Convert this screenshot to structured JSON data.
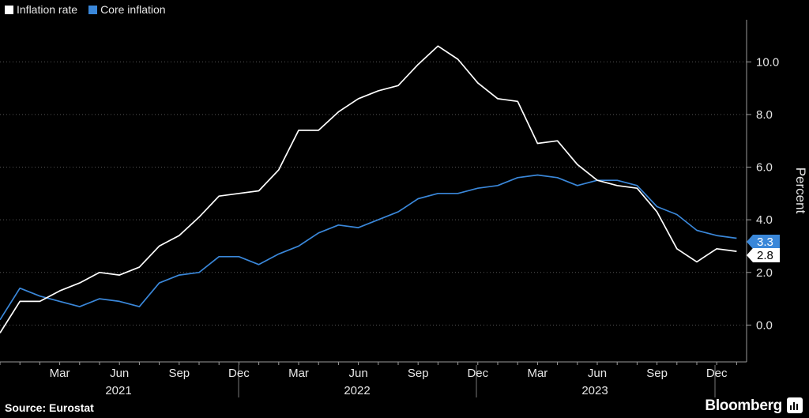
{
  "legend": {
    "series1_label": "Inflation rate",
    "series2_label": "Core inflation"
  },
  "colors": {
    "background": "#000000",
    "inflation": "#ffffff",
    "core": "#3a87d9",
    "grid": "#555555"
  },
  "footer": {
    "source": "Source: Eurostat",
    "brand": "Bloomberg",
    "brand_icon": "bloomberg-terminal-icon"
  },
  "chart_data": {
    "type": "line",
    "ylabel": "Percent",
    "yaxis_position": "right",
    "ylim": [
      -1.4,
      11.6
    ],
    "yticks": [
      0.0,
      2.0,
      4.0,
      6.0,
      8.0,
      10.0
    ],
    "ytick_labels": [
      "0.0",
      "2.0",
      "4.0",
      "6.0",
      "8.0",
      "10.0"
    ],
    "month_labels": [
      "Mar",
      "Jun",
      "Sep",
      "Dec",
      "Mar",
      "Jun",
      "Sep",
      "Dec",
      "Mar",
      "Jun",
      "Sep",
      "Dec"
    ],
    "month_label_index": [
      2,
      5,
      8,
      11,
      14,
      17,
      20,
      23,
      26,
      29,
      32,
      35
    ],
    "year_labels": [
      "2021",
      "2022",
      "2023"
    ],
    "x": [
      "Jan 2021",
      "Feb 2021",
      "Mar 2021",
      "Apr 2021",
      "May 2021",
      "Jun 2021",
      "Jul 2021",
      "Aug 2021",
      "Sep 2021",
      "Oct 2021",
      "Nov 2021",
      "Dec 2021",
      "Jan 2022",
      "Feb 2022",
      "Mar 2022",
      "Apr 2022",
      "May 2022",
      "Jun 2022",
      "Jul 2022",
      "Aug 2022",
      "Sep 2022",
      "Oct 2022",
      "Nov 2022",
      "Dec 2022",
      "Jan 2023",
      "Feb 2023",
      "Mar 2023",
      "Apr 2023",
      "May 2023",
      "Jun 2023",
      "Jul 2023",
      "Aug 2023",
      "Sep 2023",
      "Oct 2023",
      "Nov 2023",
      "Dec 2023",
      "Jan 2024"
    ],
    "x_start_value": "Dec 2020",
    "series": [
      {
        "name": "Inflation rate",
        "start_value": -0.3,
        "values": [
          0.9,
          0.9,
          1.3,
          1.6,
          2.0,
          1.9,
          2.2,
          3.0,
          3.4,
          4.1,
          4.9,
          5.0,
          5.1,
          5.9,
          7.4,
          7.4,
          8.1,
          8.6,
          8.9,
          9.1,
          9.9,
          10.6,
          10.1,
          9.2,
          8.6,
          8.5,
          6.9,
          7.0,
          6.1,
          5.5,
          5.3,
          5.2,
          4.3,
          2.9,
          2.4,
          2.9,
          2.8
        ],
        "last_label": "2.8"
      },
      {
        "name": "Core inflation",
        "start_value": 0.2,
        "values": [
          1.4,
          1.1,
          0.9,
          0.7,
          1.0,
          0.9,
          0.7,
          1.6,
          1.9,
          2.0,
          2.6,
          2.6,
          2.3,
          2.7,
          3.0,
          3.5,
          3.8,
          3.7,
          4.0,
          4.3,
          4.8,
          5.0,
          5.0,
          5.2,
          5.3,
          5.6,
          5.7,
          5.6,
          5.3,
          5.5,
          5.5,
          5.3,
          4.5,
          4.2,
          3.6,
          3.4,
          3.3
        ],
        "last_label": "3.3"
      }
    ]
  }
}
